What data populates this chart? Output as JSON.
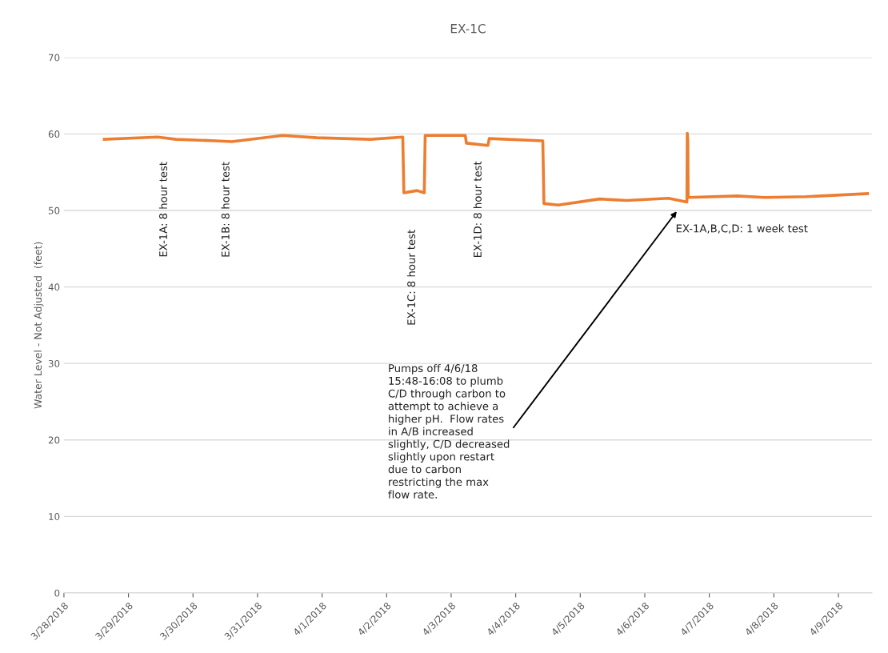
{
  "chart_data": {
    "type": "line",
    "title": "EX-1C",
    "ylabel": "Water Level - Not Adjusted  (feet)",
    "series": [
      {
        "color": "#ed7d31",
        "x": [
          "2018-03-28T15:00",
          "2018-03-29T10:50",
          "2018-03-29T17:40",
          "2018-03-30T08:30",
          "2018-03-30T14:25",
          "2018-03-31T09:20",
          "2018-03-31T22:05",
          "2018-04-01T18:00",
          "2018-04-02T06:00",
          "2018-04-02T06:25",
          "2018-04-02T11:20",
          "2018-04-02T14:00",
          "2018-04-02T14:20",
          "2018-04-03T05:15",
          "2018-04-03T05:40",
          "2018-04-03T13:40",
          "2018-04-03T14:10",
          "2018-04-04T10:05",
          "2018-04-04T10:30",
          "2018-04-04T15:50",
          "2018-04-05T07:10",
          "2018-04-05T17:20",
          "2018-04-06T08:50",
          "2018-04-06T15:40",
          "2018-04-06T15:48",
          "2018-04-06T16:00",
          "2018-04-06T16:08",
          "2018-04-07T10:20",
          "2018-04-07T20:40",
          "2018-04-08T12:00",
          "2018-04-09T10:50"
        ],
        "values": [
          59.3,
          59.6,
          59.3,
          59.1,
          59.0,
          59.8,
          59.5,
          59.3,
          59.6,
          52.3,
          52.6,
          52.3,
          59.8,
          59.8,
          58.8,
          58.5,
          59.4,
          59.1,
          50.9,
          50.7,
          51.5,
          51.3,
          51.6,
          51.1,
          60.1,
          59.0,
          51.7,
          51.9,
          51.7,
          51.8,
          52.2
        ]
      }
    ],
    "xlim": [
      "2018-03-28",
      "2018-04-09T12:30"
    ],
    "xticks": [
      {
        "value": "2018-03-28",
        "label": "3/28/2018"
      },
      {
        "value": "2018-03-29",
        "label": "3/29/2018"
      },
      {
        "value": "2018-03-30",
        "label": "3/30/2018"
      },
      {
        "value": "2018-03-31",
        "label": "3/31/2018"
      },
      {
        "value": "2018-04-01",
        "label": "4/1/2018"
      },
      {
        "value": "2018-04-02",
        "label": "4/2/2018"
      },
      {
        "value": "2018-04-03",
        "label": "4/3/2018"
      },
      {
        "value": "2018-04-04",
        "label": "4/4/2018"
      },
      {
        "value": "2018-04-05",
        "label": "4/5/2018"
      },
      {
        "value": "2018-04-06",
        "label": "4/6/2018"
      },
      {
        "value": "2018-04-07",
        "label": "4/7/2018"
      },
      {
        "value": "2018-04-08",
        "label": "4/8/2018"
      },
      {
        "value": "2018-04-09",
        "label": "4/9/2018"
      }
    ],
    "ylim": [
      0,
      70
    ],
    "yticks": [
      0,
      10,
      20,
      30,
      40,
      50,
      60,
      70
    ],
    "grid": "y",
    "legend": false,
    "marker": "none",
    "line_style": "solid",
    "annotations": [
      "EX-1A: 8 hour test",
      "EX-1B: 8 hour test",
      "EX-1C: 8 hour test",
      "EX-1D: 8 hour test",
      "EX-1A,B,C,D: 1 week test",
      "Pumps off 4/6/18\n15:48-16:08 to plumb\nC/D through carbon to\nattempt to achieve a\nhigher pH.  Flow rates\nin A/B increased\nslightly, C/D decreased\nslightly upon restart\ndue to carbon\nrestricting the max\nflow rate."
    ]
  }
}
